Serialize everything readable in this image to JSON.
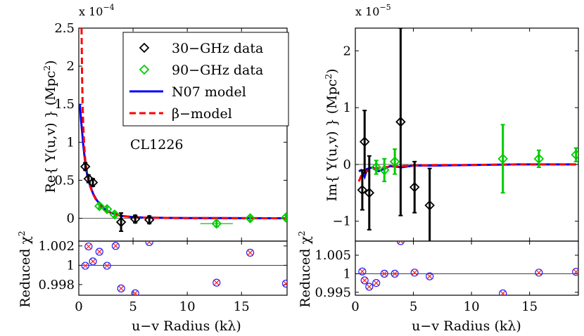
{
  "chart_data": [
    {
      "type": "scatter",
      "ylabel": "Re{ Y(u,v) } (Mpc",
      "ylabel_sup": "2",
      "ylabel_end": ")",
      "scale_label": "x 10",
      "scale_exp": "−4",
      "annotation": "CL1226",
      "xlim": [
        0,
        19.2
      ],
      "ylim": [
        -0.3,
        2.5
      ],
      "yticks": [
        0,
        0.5,
        1,
        1.5,
        2,
        2.5
      ],
      "ytick_labels": [
        "0",
        "0.5",
        "1",
        "1.5",
        "2",
        "2.5"
      ],
      "legend": {
        "placement": "top-right",
        "entries": [
          {
            "label": "30−GHz data",
            "color": "#000000",
            "style": "diamond"
          },
          {
            "label": "90−GHz data",
            "color": "#00cc00",
            "style": "diamond"
          },
          {
            "label": "N07 model",
            "color": "#0000ff",
            "style": "solid"
          },
          {
            "label": "β−model",
            "color": "#ff0000",
            "style": "dashed"
          }
        ]
      },
      "series": [
        {
          "name": "30−GHz data",
          "color": "#000000",
          "x": [
            0.6,
            0.9,
            1.3,
            3.9,
            5.2,
            6.5
          ],
          "y": [
            0.68,
            0.52,
            0.47,
            -0.05,
            -0.01,
            -0.02
          ],
          "yerr": [
            0.05,
            0.05,
            0.05,
            0.12,
            0.05,
            0.05
          ],
          "xerr": [
            0,
            0,
            0,
            0,
            0,
            0
          ]
        },
        {
          "name": "90−GHz data",
          "color": "#00cc00",
          "x": [
            1.9,
            2.6,
            3.3,
            12.7,
            15.8,
            19.1
          ],
          "y": [
            0.16,
            0.12,
            0.05,
            -0.07,
            0.0,
            0.01
          ],
          "yerr": [
            0.03,
            0.03,
            0.03,
            0.04,
            0.03,
            0.03
          ],
          "xerr": [
            0,
            0,
            0,
            1.5,
            0,
            0
          ]
        }
      ],
      "models": [
        {
          "name": "N07 model",
          "color": "#0000ff",
          "style": "solid",
          "x": [
            0.1,
            0.2,
            0.3,
            0.4,
            0.5,
            0.6,
            0.8,
            1.0,
            1.3,
            1.6,
            2.0,
            2.5,
            3.0,
            3.5,
            4.0,
            5.0,
            6.0,
            8.0,
            10.0,
            13.0,
            16.0,
            19.0
          ],
          "y": [
            1.5,
            1.3,
            1.15,
            0.98,
            0.85,
            0.72,
            0.55,
            0.45,
            0.33,
            0.25,
            0.17,
            0.11,
            0.07,
            0.05,
            0.03,
            0.015,
            0.01,
            0.005,
            0.003,
            0.002,
            0.001,
            0.0
          ]
        },
        {
          "name": "β−model",
          "color": "#ff0000",
          "style": "dashed",
          "x": [
            0.25,
            0.3,
            0.35,
            0.4,
            0.5,
            0.6,
            0.8,
            1.0,
            1.3,
            1.6,
            2.0,
            2.5,
            3.0,
            3.5,
            4.0,
            5.0,
            6.0,
            8.0,
            10.0,
            13.0,
            16.0,
            19.0
          ],
          "y": [
            2.5,
            1.9,
            1.5,
            1.25,
            0.95,
            0.75,
            0.56,
            0.44,
            0.32,
            0.24,
            0.16,
            0.1,
            0.07,
            0.045,
            0.03,
            0.015,
            0.01,
            0.005,
            0.003,
            0.002,
            0.001,
            0.0
          ]
        }
      ]
    },
    {
      "type": "scatter",
      "ylabel": "Im{ Y(u,v) } (Mpc",
      "ylabel_sup": "2",
      "ylabel_end": ")",
      "scale_label": "x 10",
      "scale_exp": "−5",
      "xlim": [
        0,
        19.2
      ],
      "ylim": [
        -1.35,
        2.4
      ],
      "yticks": [
        -1,
        0,
        1,
        2
      ],
      "ytick_labels": [
        "−1",
        "0",
        "1",
        "2"
      ],
      "series": [
        {
          "name": "30−GHz data",
          "color": "#000000",
          "x": [
            0.6,
            0.8,
            1.2,
            3.9,
            5.1,
            6.4
          ],
          "y": [
            -0.45,
            0.4,
            -0.5,
            0.75,
            -0.4,
            -0.72
          ],
          "yerr": [
            0.35,
            0.55,
            0.65,
            1.65,
            0.45,
            0.65
          ],
          "xerr": [
            0,
            0,
            0,
            0,
            0,
            0
          ]
        },
        {
          "name": "90−GHz data",
          "color": "#00cc00",
          "x": [
            1.8,
            2.5,
            3.4,
            12.7,
            15.8,
            19.0
          ],
          "y": [
            -0.05,
            -0.1,
            0.05,
            0.1,
            0.1,
            0.17
          ],
          "yerr": [
            0.12,
            0.2,
            0.22,
            0.6,
            0.15,
            0.12
          ],
          "xerr": [
            0,
            0,
            0,
            0,
            0,
            0
          ]
        }
      ],
      "models": [
        {
          "name": "N07 model",
          "color": "#0000ff",
          "style": "solid",
          "x": [
            0.3,
            0.5,
            0.8,
            1.0,
            1.5,
            2.0,
            3.0,
            4.0,
            5.0,
            7.0,
            10.0,
            14.0,
            19.0
          ],
          "y": [
            -0.12,
            -0.1,
            -0.22,
            -0.08,
            -0.05,
            -0.12,
            -0.03,
            -0.05,
            -0.02,
            -0.02,
            -0.01,
            0.0,
            0.0
          ]
        },
        {
          "name": "β−model",
          "color": "#ff0000",
          "style": "dashed",
          "x": [
            0.3,
            0.5,
            0.8,
            1.0,
            1.5,
            2.0,
            3.0,
            4.0,
            5.0,
            7.0,
            10.0,
            14.0,
            19.0
          ],
          "y": [
            -0.3,
            -0.2,
            -0.15,
            -0.12,
            -0.08,
            -0.06,
            -0.04,
            -0.03,
            -0.02,
            -0.01,
            -0.01,
            0.0,
            0.0
          ]
        }
      ]
    },
    {
      "type": "scatter",
      "ylabel": "Reduced χ",
      "ylabel_sup": "2",
      "xlabel": "u−v Radius (kλ)",
      "xlim": [
        0,
        19.2
      ],
      "ylim": [
        0.9969,
        1.0025
      ],
      "yticks": [
        0.998,
        1,
        1.002
      ],
      "ytick_labels": [
        "0.998",
        "1",
        "1.002"
      ],
      "xticks": [
        0,
        5,
        10,
        15
      ],
      "xtick_labels": [
        "0",
        "5",
        "10",
        "15"
      ],
      "reference": 1,
      "x": [
        0.6,
        0.9,
        1.3,
        1.9,
        2.6,
        3.4,
        3.9,
        5.2,
        6.5,
        12.7,
        15.8,
        19.1
      ],
      "y": [
        0.99995,
        1.00195,
        1.0004,
        1.0014,
        0.99995,
        1.002,
        0.9976,
        0.9971,
        1.0024,
        0.9982,
        1.0013,
        0.9981
      ]
    },
    {
      "type": "scatter",
      "ylabel": "Reduced χ",
      "ylabel_sup": "2",
      "xlabel": "u−v Radius (kλ)",
      "xlim": [
        0,
        19.2
      ],
      "ylim": [
        0.9942,
        1.0088
      ],
      "yticks": [
        0.995,
        1,
        1.005
      ],
      "ytick_labels": [
        "0.995",
        "1",
        "1.005"
      ],
      "xticks": [
        0,
        5,
        10,
        15
      ],
      "xtick_labels": [
        "0",
        "5",
        "10",
        "15"
      ],
      "reference": 1,
      "x": [
        0.6,
        0.8,
        1.2,
        1.8,
        2.5,
        3.4,
        3.9,
        5.1,
        6.4,
        12.7,
        15.8,
        19.0
      ],
      "y": [
        1.0006,
        0.9982,
        0.9965,
        0.9975,
        1.0,
        1.0,
        1.0088,
        1.0003,
        0.9993,
        0.9947,
        1.0003,
        1.0005
      ]
    }
  ]
}
